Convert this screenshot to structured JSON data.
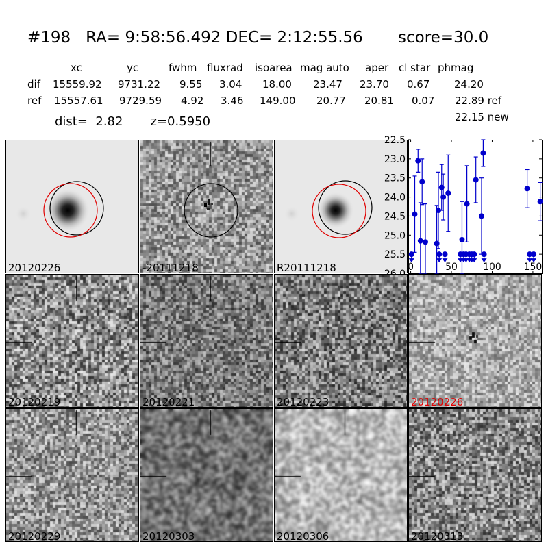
{
  "title": {
    "id": "#198",
    "ra": "RA= 9:58:56.492",
    "dec": "DEC= 2:12:55.56",
    "score": "score=30.0"
  },
  "table": {
    "headers": [
      "xc",
      "yc",
      "fwhm",
      "fluxrad",
      "isoarea",
      "mag auto",
      "aper",
      "cl star",
      "phmag"
    ],
    "dif": [
      "dif",
      "15559.92",
      "9731.22",
      "9.55",
      "3.04",
      "18.00",
      "23.47",
      "23.70",
      "0.67",
      "24.20"
    ],
    "ref": [
      "ref",
      "15557.61",
      "9729.59",
      "4.92",
      "3.46",
      "149.00",
      "20.77",
      "20.81",
      "0.07",
      "22.89 ref"
    ],
    "new": "22.15 new"
  },
  "dist": "dist=  2.82",
  "z": "z=0.5950",
  "top_panels": [
    {
      "label": "20120226"
    },
    {
      "label": "-20111218"
    },
    {
      "label": "R20111218"
    }
  ],
  "stamps": [
    {
      "label": "20120219",
      "highlight": false
    },
    {
      "label": "20120221",
      "highlight": false
    },
    {
      "label": "20120223",
      "highlight": false
    },
    {
      "label": "20120226",
      "highlight": true
    },
    {
      "label": "20120229",
      "highlight": false
    },
    {
      "label": "20120303",
      "highlight": false
    },
    {
      "label": "20120306",
      "highlight": false
    },
    {
      "label": "20120313",
      "highlight": false
    }
  ],
  "colors": {
    "points": "#0000cc",
    "highlight": "#e00000",
    "circle_red": "#e00000"
  },
  "chart_data": {
    "type": "scatter",
    "title": "",
    "xlabel": "",
    "ylabel": "",
    "xlim": [
      -3,
      161
    ],
    "ylim": [
      26.0,
      22.5
    ],
    "y_inverted": true,
    "xticks": [
      0,
      50,
      100,
      150
    ],
    "yticks": [
      22.5,
      23.0,
      23.5,
      24.0,
      24.5,
      25.0,
      25.5,
      26.0
    ],
    "detections": [
      {
        "x": 5,
        "y": 24.45,
        "err": 1.0
      },
      {
        "x": 9,
        "y": 23.05,
        "err": 0.3
      },
      {
        "x": 12,
        "y": 25.15,
        "err": 1.0
      },
      {
        "x": 14,
        "y": 23.6,
        "err": 0.6
      },
      {
        "x": 18,
        "y": 25.18,
        "err": 1.0
      },
      {
        "x": 32,
        "y": 25.22,
        "err": 1.0
      },
      {
        "x": 34,
        "y": 24.35,
        "err": 1.0
      },
      {
        "x": 38,
        "y": 23.75,
        "err": 0.6
      },
      {
        "x": 40,
        "y": 24.0,
        "err": 0.6
      },
      {
        "x": 46,
        "y": 23.9,
        "err": 1.0
      },
      {
        "x": 63,
        "y": 25.12,
        "err": 1.0
      },
      {
        "x": 69,
        "y": 24.18,
        "err": 1.0
      },
      {
        "x": 80,
        "y": 23.55,
        "err": 0.6
      },
      {
        "x": 87,
        "y": 24.5,
        "err": 1.0
      },
      {
        "x": 89,
        "y": 22.85,
        "err": 0.35
      },
      {
        "x": 143,
        "y": 23.78,
        "err": 0.5
      },
      {
        "x": 159,
        "y": 24.12,
        "err": 0.5
      }
    ],
    "upper_limits": [
      {
        "x": 1,
        "y": 25.5
      },
      {
        "x": 35,
        "y": 25.5
      },
      {
        "x": 42,
        "y": 25.5
      },
      {
        "x": 61,
        "y": 25.5
      },
      {
        "x": 65,
        "y": 25.5
      },
      {
        "x": 68,
        "y": 25.5
      },
      {
        "x": 72,
        "y": 25.5
      },
      {
        "x": 75,
        "y": 25.5
      },
      {
        "x": 78,
        "y": 25.5
      },
      {
        "x": 90,
        "y": 25.5
      },
      {
        "x": 146,
        "y": 25.5
      },
      {
        "x": 151,
        "y": 25.5
      }
    ]
  }
}
